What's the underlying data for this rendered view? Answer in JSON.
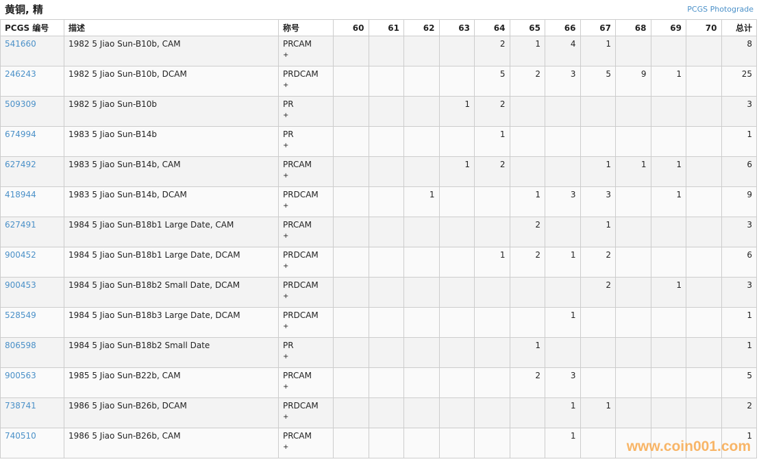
{
  "title": "黄铜, 精",
  "photograde_link": "PCGS Photograde",
  "watermark": "www.coin001.com",
  "headers": [
    "PCGS 编号",
    "描述",
    "称号",
    "60",
    "61",
    "62",
    "63",
    "64",
    "65",
    "66",
    "67",
    "68",
    "69",
    "70",
    "总计"
  ],
  "rows": [
    {
      "id": "541660",
      "desc": "1982 5 Jiao Sun-B10b, CAM",
      "des": "PRCAM",
      "plus": "+",
      "g": [
        "",
        "",
        "",
        "",
        "2",
        "1",
        "4",
        "1",
        "",
        "",
        "",
        "8"
      ]
    },
    {
      "id": "246243",
      "desc": "1982 5 Jiao Sun-B10b, DCAM",
      "des": "PRDCAM",
      "plus": "+",
      "g": [
        "",
        "",
        "",
        "",
        "5",
        "2",
        "3",
        "5",
        "9",
        "1",
        "",
        "25"
      ]
    },
    {
      "id": "509309",
      "desc": "1982 5 Jiao Sun-B10b",
      "des": "PR",
      "plus": "+",
      "g": [
        "",
        "",
        "",
        "1",
        "2",
        "",
        "",
        "",
        "",
        "",
        "",
        "3"
      ]
    },
    {
      "id": "674994",
      "desc": "1983 5 Jiao Sun-B14b",
      "des": "PR",
      "plus": "+",
      "g": [
        "",
        "",
        "",
        "",
        "1",
        "",
        "",
        "",
        "",
        "",
        "",
        "1"
      ]
    },
    {
      "id": "627492",
      "desc": "1983 5 Jiao Sun-B14b, CAM",
      "des": "PRCAM",
      "plus": "+",
      "g": [
        "",
        "",
        "",
        "1",
        "2",
        "",
        "",
        "1",
        "1",
        "1",
        "",
        "6"
      ]
    },
    {
      "id": "418944",
      "desc": "1983 5 Jiao Sun-B14b, DCAM",
      "des": "PRDCAM",
      "plus": "+",
      "g": [
        "",
        "",
        "1",
        "",
        "",
        "1",
        "3",
        "3",
        "",
        "1",
        "",
        "9"
      ]
    },
    {
      "id": "627491",
      "desc": "1984 5 Jiao Sun-B18b1 Large Date, CAM",
      "des": "PRCAM",
      "plus": "+",
      "g": [
        "",
        "",
        "",
        "",
        "",
        "2",
        "",
        "1",
        "",
        "",
        "",
        "3"
      ]
    },
    {
      "id": "900452",
      "desc": "1984 5 Jiao Sun-B18b1 Large Date, DCAM",
      "des": "PRDCAM",
      "plus": "+",
      "g": [
        "",
        "",
        "",
        "",
        "1",
        "2",
        "1",
        "2",
        "",
        "",
        "",
        "6"
      ]
    },
    {
      "id": "900453",
      "desc": "1984 5 Jiao Sun-B18b2 Small Date, DCAM",
      "des": "PRDCAM",
      "plus": "+",
      "g": [
        "",
        "",
        "",
        "",
        "",
        "",
        "",
        "2",
        "",
        "1",
        "",
        "3"
      ]
    },
    {
      "id": "528549",
      "desc": "1984 5 Jiao Sun-B18b3 Large Date, DCAM",
      "des": "PRDCAM",
      "plus": "+",
      "g": [
        "",
        "",
        "",
        "",
        "",
        "",
        "1",
        "",
        "",
        "",
        "",
        "1"
      ]
    },
    {
      "id": "806598",
      "desc": "1984 5 Jiao Sun-B18b2 Small Date",
      "des": "PR",
      "plus": "+",
      "g": [
        "",
        "",
        "",
        "",
        "",
        "1",
        "",
        "",
        "",
        "",
        "",
        "1"
      ]
    },
    {
      "id": "900563",
      "desc": "1985 5 Jiao Sun-B22b, CAM",
      "des": "PRCAM",
      "plus": "+",
      "g": [
        "",
        "",
        "",
        "",
        "",
        "2",
        "3",
        "",
        "",
        "",
        "",
        "5"
      ]
    },
    {
      "id": "738741",
      "desc": "1986 5 Jiao Sun-B26b, DCAM",
      "des": "PRDCAM",
      "plus": "+",
      "g": [
        "",
        "",
        "",
        "",
        "",
        "",
        "1",
        "1",
        "",
        "",
        "",
        "2"
      ]
    },
    {
      "id": "740510",
      "desc": "1986 5 Jiao Sun-B26b, CAM",
      "des": "PRCAM",
      "plus": "+",
      "g": [
        "",
        "",
        "",
        "",
        "",
        "",
        "1",
        "",
        "",
        "",
        "",
        "1"
      ]
    }
  ]
}
